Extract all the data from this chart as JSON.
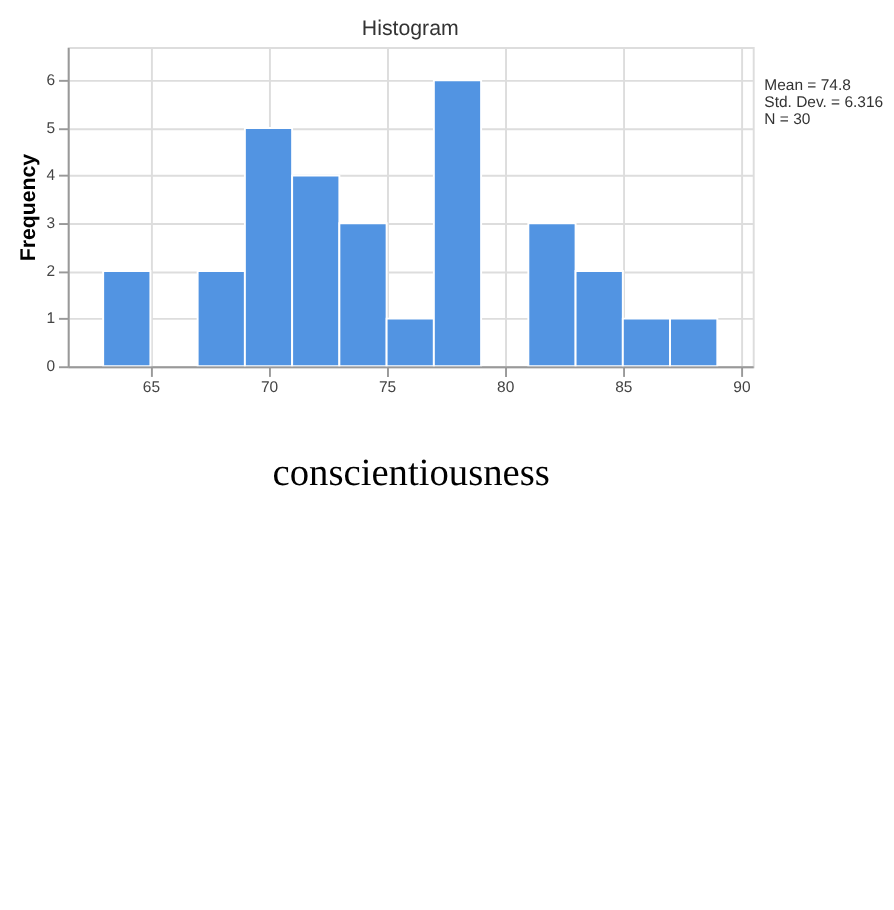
{
  "chart_data": {
    "type": "histogram",
    "title": "Histogram",
    "xlabel": "conscientiousness",
    "ylabel": "Frequency",
    "bins": [
      63,
      65,
      67,
      69,
      71,
      73,
      75,
      77,
      79,
      81,
      83,
      85,
      87,
      89
    ],
    "values": [
      2,
      0,
      2,
      5,
      4,
      3,
      1,
      6,
      0,
      3,
      2,
      1,
      1
    ],
    "color": "#5294e2",
    "xlim": [
      61.5,
      90.5
    ],
    "xticks": [
      65,
      70,
      75,
      80,
      85,
      90
    ],
    "ylim": [
      0,
      6.7
    ],
    "yticks": [
      0,
      1,
      2,
      3,
      4,
      5,
      6
    ],
    "grid": true,
    "annotations": [
      "Mean = 74.8",
      "Std. Dev. = 6.316",
      "N = 30"
    ]
  }
}
